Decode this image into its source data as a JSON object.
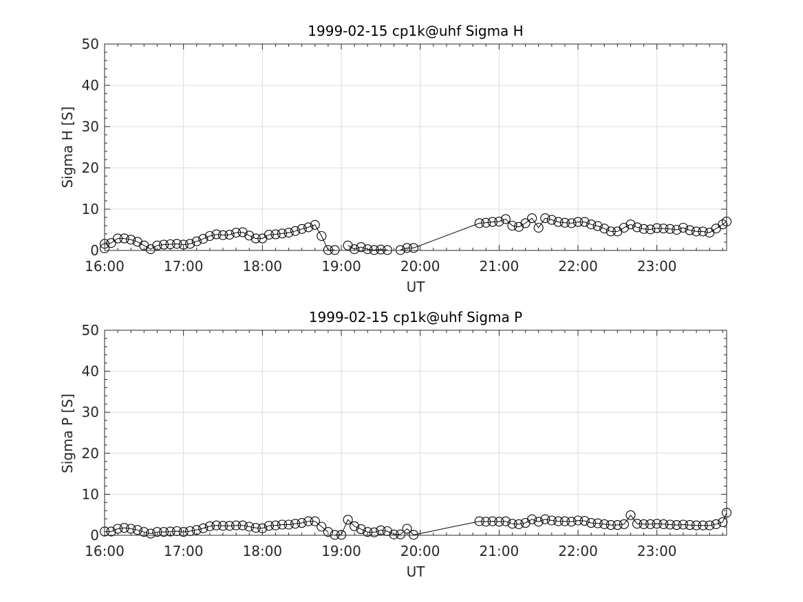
{
  "chart_data": [
    {
      "type": "line",
      "title": "1999-02-15  cp1k@uhf Sigma H",
      "xlabel": "UT",
      "ylabel": "Sigma H [S]",
      "ylim": [
        0,
        50
      ],
      "yticks": [
        0,
        10,
        20,
        30,
        40,
        50
      ],
      "xlim": [
        "16:00",
        "23:53"
      ],
      "xticks": [
        "16:00",
        "17:00",
        "18:00",
        "19:00",
        "20:00",
        "21:00",
        "22:00",
        "23:00"
      ],
      "grid": true,
      "marker": "open-circle",
      "series": [
        {
          "segments": [
            [
              [
                "16:00",
                0.5
              ],
              [
                "16:00",
                1.6
              ],
              [
                "16:05",
                1.8
              ],
              [
                "16:10",
                2.9
              ],
              [
                "16:15",
                2.9
              ],
              [
                "16:20",
                2.6
              ],
              [
                "16:25",
                2.1
              ],
              [
                "16:30",
                1.2
              ],
              [
                "16:35",
                0.3
              ],
              [
                "16:40",
                1.2
              ],
              [
                "16:45",
                1.4
              ],
              [
                "16:50",
                1.5
              ],
              [
                "16:55",
                1.6
              ],
              [
                "17:00",
                1.4
              ],
              [
                "17:05",
                1.6
              ],
              [
                "17:10",
                2.2
              ],
              [
                "17:15",
                2.8
              ],
              [
                "17:20",
                3.5
              ],
              [
                "17:25",
                3.9
              ],
              [
                "17:30",
                3.7
              ],
              [
                "17:35",
                3.8
              ],
              [
                "17:40",
                4.3
              ],
              [
                "17:45",
                4.4
              ],
              [
                "17:50",
                3.6
              ],
              [
                "17:55",
                2.9
              ],
              [
                "18:00",
                2.9
              ],
              [
                "18:05",
                3.8
              ],
              [
                "18:10",
                3.9
              ],
              [
                "18:15",
                4.1
              ],
              [
                "18:20",
                4.3
              ],
              [
                "18:25",
                4.7
              ],
              [
                "18:30",
                5.2
              ],
              [
                "18:35",
                5.6
              ],
              [
                "18:40",
                6.2
              ],
              [
                "18:45",
                3.5
              ],
              [
                "18:50",
                0.1
              ],
              [
                "18:55",
                0.1
              ]
            ],
            [
              [
                "19:05",
                1.2
              ],
              [
                "19:10",
                0.3
              ],
              [
                "19:15",
                0.8
              ],
              [
                "19:20",
                0.3
              ],
              [
                "19:25",
                0.1
              ],
              [
                "19:30",
                0.2
              ],
              [
                "19:35",
                0.1
              ]
            ],
            [
              [
                "19:45",
                0.1
              ],
              [
                "19:50",
                0.6
              ],
              [
                "19:55",
                0.6
              ],
              [
                "20:45",
                6.6
              ],
              [
                "20:50",
                6.7
              ],
              [
                "20:55",
                6.9
              ],
              [
                "21:00",
                7.0
              ],
              [
                "21:05",
                7.6
              ],
              [
                "21:10",
                6.0
              ],
              [
                "21:15",
                5.7
              ],
              [
                "21:20",
                6.6
              ],
              [
                "21:25",
                7.8
              ],
              [
                "21:30",
                5.5
              ],
              [
                "21:35",
                7.8
              ],
              [
                "21:40",
                7.4
              ],
              [
                "21:45",
                6.9
              ],
              [
                "21:50",
                6.7
              ],
              [
                "21:55",
                6.6
              ],
              [
                "22:00",
                6.9
              ],
              [
                "22:05",
                6.9
              ],
              [
                "22:10",
                6.3
              ],
              [
                "22:15",
                5.9
              ],
              [
                "22:20",
                5.3
              ],
              [
                "22:25",
                4.6
              ],
              [
                "22:30",
                4.6
              ],
              [
                "22:35",
                5.5
              ],
              [
                "22:40",
                6.3
              ],
              [
                "22:45",
                5.6
              ],
              [
                "22:50",
                5.2
              ],
              [
                "22:55",
                5.1
              ],
              [
                "23:00",
                5.4
              ],
              [
                "23:05",
                5.3
              ],
              [
                "23:10",
                5.2
              ],
              [
                "23:15",
                5.0
              ],
              [
                "23:20",
                5.5
              ],
              [
                "23:25",
                4.9
              ],
              [
                "23:30",
                4.6
              ],
              [
                "23:35",
                4.6
              ],
              [
                "23:40",
                4.3
              ],
              [
                "23:45",
                5.3
              ],
              [
                "23:50",
                6.3
              ],
              [
                "23:53",
                7.0
              ]
            ]
          ]
        }
      ]
    },
    {
      "type": "line",
      "title": "1999-02-15  cp1k@uhf Sigma P",
      "xlabel": "UT",
      "ylabel": "Sigma P [S]",
      "ylim": [
        0,
        50
      ],
      "yticks": [
        0,
        10,
        20,
        30,
        40,
        50
      ],
      "xlim": [
        "16:00",
        "23:53"
      ],
      "xticks": [
        "16:00",
        "17:00",
        "18:00",
        "19:00",
        "20:00",
        "21:00",
        "22:00",
        "23:00"
      ],
      "grid": true,
      "marker": "open-circle",
      "series": [
        {
          "segments": [
            [
              [
                "16:00",
                0.9
              ],
              [
                "16:05",
                0.9
              ],
              [
                "16:10",
                1.6
              ],
              [
                "16:15",
                1.8
              ],
              [
                "16:20",
                1.6
              ],
              [
                "16:25",
                1.3
              ],
              [
                "16:30",
                0.8
              ],
              [
                "16:35",
                0.4
              ],
              [
                "16:40",
                0.8
              ],
              [
                "16:45",
                0.8
              ],
              [
                "16:50",
                0.9
              ],
              [
                "16:55",
                1.0
              ],
              [
                "17:00",
                0.8
              ],
              [
                "17:05",
                1.0
              ],
              [
                "17:10",
                1.3
              ],
              [
                "17:15",
                1.7
              ],
              [
                "17:20",
                2.2
              ],
              [
                "17:25",
                2.4
              ],
              [
                "17:30",
                2.3
              ],
              [
                "17:35",
                2.3
              ],
              [
                "17:40",
                2.4
              ],
              [
                "17:45",
                2.4
              ],
              [
                "17:50",
                2.1
              ],
              [
                "17:55",
                1.8
              ],
              [
                "18:00",
                1.7
              ],
              [
                "18:05",
                2.3
              ],
              [
                "18:10",
                2.4
              ],
              [
                "18:15",
                2.6
              ],
              [
                "18:20",
                2.6
              ],
              [
                "18:25",
                2.8
              ],
              [
                "18:30",
                3.0
              ],
              [
                "18:35",
                3.4
              ],
              [
                "18:40",
                3.4
              ],
              [
                "18:45",
                2.1
              ],
              [
                "18:50",
                0.8
              ]
            ],
            [
              [
                "18:55",
                0.1
              ],
              [
                "19:00",
                0.1
              ],
              [
                "19:05",
                3.8
              ],
              [
                "19:10",
                2.2
              ],
              [
                "19:15",
                1.5
              ],
              [
                "19:20",
                0.8
              ],
              [
                "19:25",
                0.7
              ],
              [
                "19:30",
                1.2
              ],
              [
                "19:35",
                1.0
              ],
              [
                "19:40",
                0.2
              ],
              [
                "19:45",
                0.2
              ],
              [
                "19:50",
                1.6
              ],
              [
                "19:55",
                0.1
              ],
              [
                "20:45",
                3.4
              ],
              [
                "20:50",
                3.3
              ],
              [
                "20:55",
                3.4
              ],
              [
                "21:00",
                3.3
              ],
              [
                "21:05",
                3.4
              ],
              [
                "21:10",
                2.8
              ],
              [
                "21:15",
                2.7
              ],
              [
                "21:20",
                3.0
              ],
              [
                "21:25",
                3.9
              ],
              [
                "21:30",
                3.3
              ],
              [
                "21:35",
                3.9
              ],
              [
                "21:40",
                3.6
              ],
              [
                "21:45",
                3.4
              ],
              [
                "21:50",
                3.4
              ],
              [
                "21:55",
                3.3
              ],
              [
                "22:00",
                3.6
              ],
              [
                "22:05",
                3.5
              ],
              [
                "22:10",
                3.0
              ],
              [
                "22:15",
                2.9
              ],
              [
                "22:20",
                2.7
              ],
              [
                "22:25",
                2.5
              ],
              [
                "22:30",
                2.5
              ],
              [
                "22:35",
                2.7
              ],
              [
                "22:40",
                4.9
              ],
              [
                "22:45",
                2.8
              ],
              [
                "22:50",
                2.7
              ],
              [
                "22:55",
                2.7
              ],
              [
                "23:00",
                2.8
              ],
              [
                "23:05",
                2.7
              ],
              [
                "23:10",
                2.6
              ],
              [
                "23:15",
                2.5
              ],
              [
                "23:20",
                2.6
              ],
              [
                "23:25",
                2.5
              ],
              [
                "23:30",
                2.4
              ],
              [
                "23:35",
                2.4
              ],
              [
                "23:40",
                2.4
              ],
              [
                "23:45",
                2.7
              ],
              [
                "23:50",
                3.2
              ],
              [
                "23:53",
                5.5
              ]
            ]
          ]
        }
      ]
    }
  ]
}
